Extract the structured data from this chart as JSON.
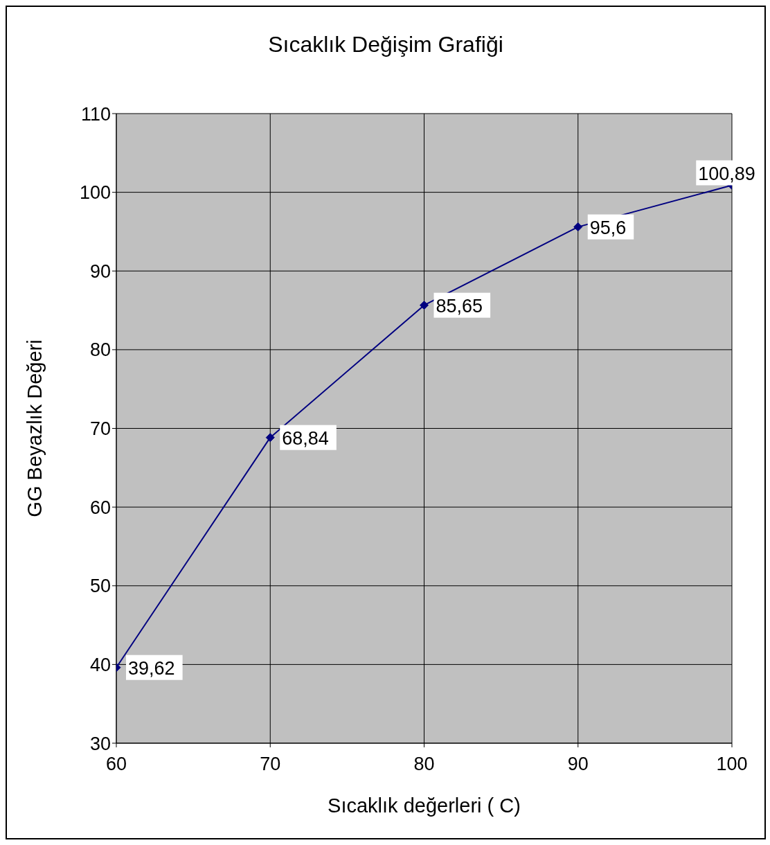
{
  "chart_data": {
    "type": "line",
    "title": "Sıcaklık Değişim Grafiği",
    "xlabel": "Sıcaklık değerleri ( C)",
    "ylabel": "GG Beyazlık Değeri",
    "x": [
      60,
      70,
      80,
      90,
      100
    ],
    "series": [
      {
        "color": "#000080",
        "values": [
          39.62,
          68.84,
          85.65,
          95.6,
          100.89
        ],
        "value_labels": [
          "39,62",
          "68,84",
          "85,65",
          "95,6",
          "100,89"
        ]
      }
    ],
    "xlim": [
      60,
      100
    ],
    "xticks": [
      60,
      70,
      80,
      90,
      100
    ],
    "ylim": [
      30,
      110
    ],
    "yticks": [
      30,
      40,
      50,
      60,
      70,
      80,
      90,
      100,
      110
    ],
    "grid": true,
    "marker": "diamond",
    "line_style": "solid"
  }
}
